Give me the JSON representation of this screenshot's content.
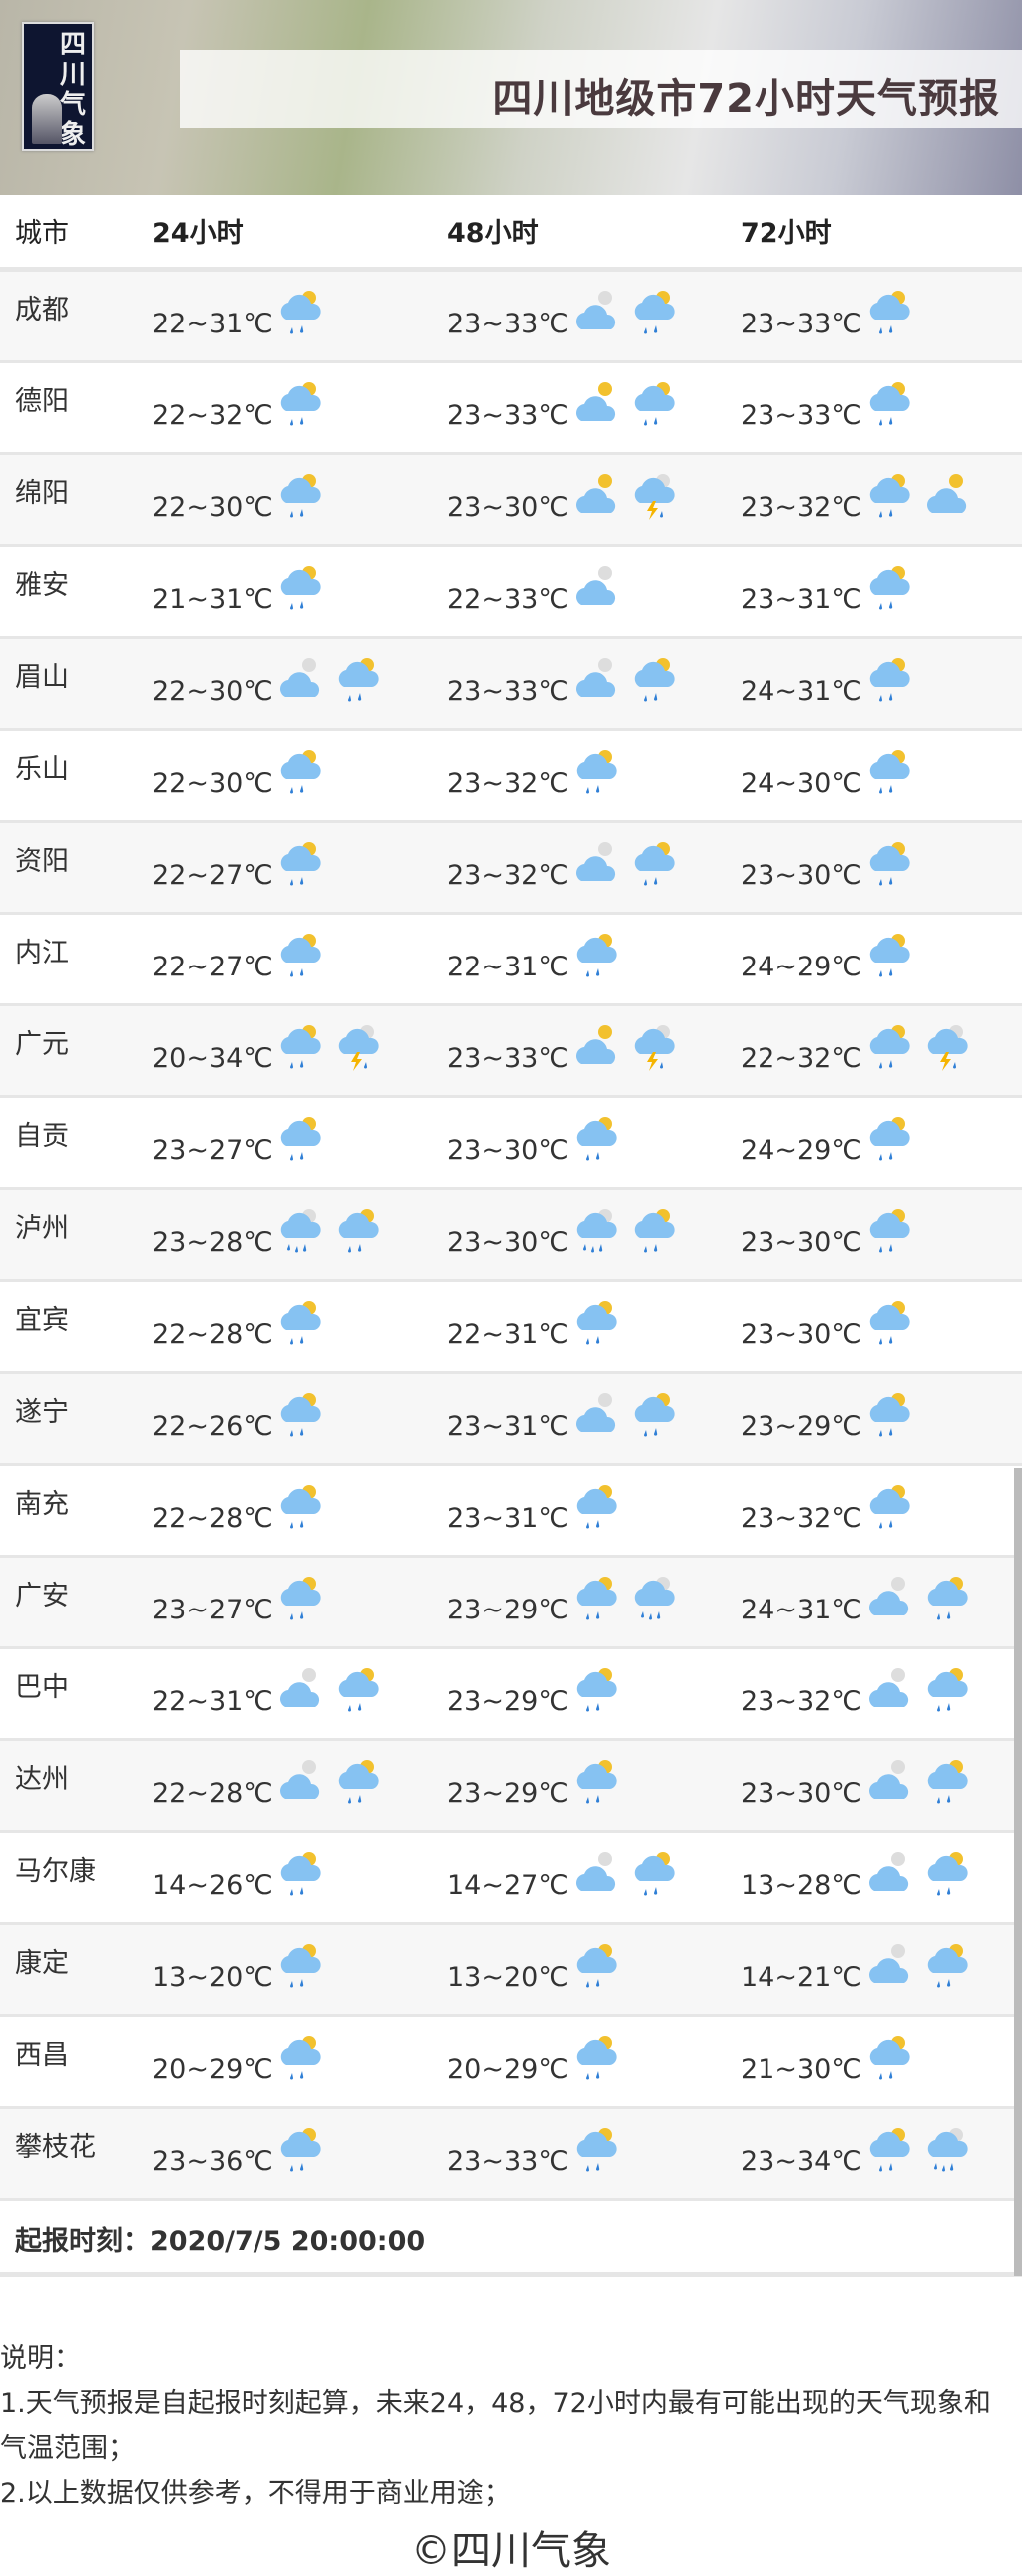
{
  "header": {
    "logo_text": "四川气象",
    "title": "四川地级市72小时天气预报"
  },
  "table": {
    "columns": [
      "城市",
      "24小时",
      "48小时",
      "72小时"
    ],
    "rows": [
      {
        "city": "成都",
        "d24": {
          "temp": "22~31℃",
          "icons": [
            "shower"
          ]
        },
        "d48": {
          "temp": "23~33℃",
          "icons": [
            "cloudy",
            "shower"
          ]
        },
        "d72": {
          "temp": "23~33℃",
          "icons": [
            "shower"
          ]
        }
      },
      {
        "city": "德阳",
        "d24": {
          "temp": "22~32℃",
          "icons": [
            "shower"
          ]
        },
        "d48": {
          "temp": "23~33℃",
          "icons": [
            "partly-cloudy",
            "shower"
          ]
        },
        "d72": {
          "temp": "23~33℃",
          "icons": [
            "shower"
          ]
        }
      },
      {
        "city": "绵阳",
        "d24": {
          "temp": "22~30℃",
          "icons": [
            "shower"
          ]
        },
        "d48": {
          "temp": "23~30℃",
          "icons": [
            "partly-cloudy",
            "thunder-shower"
          ]
        },
        "d72": {
          "temp": "23~32℃",
          "icons": [
            "shower",
            "partly-cloudy"
          ]
        }
      },
      {
        "city": "雅安",
        "d24": {
          "temp": "21~31℃",
          "icons": [
            "shower"
          ]
        },
        "d48": {
          "temp": "22~33℃",
          "icons": [
            "cloudy"
          ]
        },
        "d72": {
          "temp": "23~31℃",
          "icons": [
            "shower"
          ]
        }
      },
      {
        "city": "眉山",
        "d24": {
          "temp": "22~30℃",
          "icons": [
            "cloudy",
            "shower"
          ]
        },
        "d48": {
          "temp": "23~33℃",
          "icons": [
            "cloudy",
            "shower"
          ]
        },
        "d72": {
          "temp": "24~31℃",
          "icons": [
            "shower"
          ]
        }
      },
      {
        "city": "乐山",
        "d24": {
          "temp": "22~30℃",
          "icons": [
            "shower"
          ]
        },
        "d48": {
          "temp": "23~32℃",
          "icons": [
            "shower"
          ]
        },
        "d72": {
          "temp": "24~30℃",
          "icons": [
            "shower"
          ]
        }
      },
      {
        "city": "资阳",
        "d24": {
          "temp": "22~27℃",
          "icons": [
            "shower"
          ]
        },
        "d48": {
          "temp": "23~32℃",
          "icons": [
            "cloudy",
            "shower"
          ]
        },
        "d72": {
          "temp": "23~30℃",
          "icons": [
            "shower"
          ]
        }
      },
      {
        "city": "内江",
        "d24": {
          "temp": "22~27℃",
          "icons": [
            "shower"
          ]
        },
        "d48": {
          "temp": "22~31℃",
          "icons": [
            "shower"
          ]
        },
        "d72": {
          "temp": "24~29℃",
          "icons": [
            "shower"
          ]
        }
      },
      {
        "city": "广元",
        "d24": {
          "temp": "20~34℃",
          "icons": [
            "shower",
            "thunder-shower"
          ]
        },
        "d48": {
          "temp": "23~33℃",
          "icons": [
            "partly-cloudy",
            "thunder-shower"
          ]
        },
        "d72": {
          "temp": "22~32℃",
          "icons": [
            "shower",
            "thunder-shower"
          ]
        }
      },
      {
        "city": "自贡",
        "d24": {
          "temp": "23~27℃",
          "icons": [
            "shower"
          ]
        },
        "d48": {
          "temp": "23~30℃",
          "icons": [
            "shower"
          ]
        },
        "d72": {
          "temp": "24~29℃",
          "icons": [
            "shower"
          ]
        }
      },
      {
        "city": "泸州",
        "d24": {
          "temp": "23~28℃",
          "icons": [
            "rain",
            "shower"
          ]
        },
        "d48": {
          "temp": "23~30℃",
          "icons": [
            "rain",
            "shower"
          ]
        },
        "d72": {
          "temp": "23~30℃",
          "icons": [
            "shower"
          ]
        }
      },
      {
        "city": "宜宾",
        "d24": {
          "temp": "22~28℃",
          "icons": [
            "shower"
          ]
        },
        "d48": {
          "temp": "22~31℃",
          "icons": [
            "shower"
          ]
        },
        "d72": {
          "temp": "23~30℃",
          "icons": [
            "shower"
          ]
        }
      },
      {
        "city": "遂宁",
        "d24": {
          "temp": "22~26℃",
          "icons": [
            "shower"
          ]
        },
        "d48": {
          "temp": "23~31℃",
          "icons": [
            "cloudy",
            "shower"
          ]
        },
        "d72": {
          "temp": "23~29℃",
          "icons": [
            "shower"
          ]
        }
      },
      {
        "city": "南充",
        "d24": {
          "temp": "22~28℃",
          "icons": [
            "shower"
          ]
        },
        "d48": {
          "temp": "23~31℃",
          "icons": [
            "shower"
          ]
        },
        "d72": {
          "temp": "23~32℃",
          "icons": [
            "shower"
          ]
        }
      },
      {
        "city": "广安",
        "d24": {
          "temp": "23~27℃",
          "icons": [
            "shower"
          ]
        },
        "d48": {
          "temp": "23~29℃",
          "icons": [
            "shower",
            "rain"
          ]
        },
        "d72": {
          "temp": "24~31℃",
          "icons": [
            "cloudy",
            "shower"
          ]
        }
      },
      {
        "city": "巴中",
        "d24": {
          "temp": "22~31℃",
          "icons": [
            "cloudy",
            "shower"
          ]
        },
        "d48": {
          "temp": "23~29℃",
          "icons": [
            "shower"
          ]
        },
        "d72": {
          "temp": "23~32℃",
          "icons": [
            "cloudy",
            "shower"
          ]
        }
      },
      {
        "city": "达州",
        "d24": {
          "temp": "22~28℃",
          "icons": [
            "cloudy",
            "shower"
          ]
        },
        "d48": {
          "temp": "23~29℃",
          "icons": [
            "shower"
          ]
        },
        "d72": {
          "temp": "23~30℃",
          "icons": [
            "cloudy",
            "shower"
          ]
        }
      },
      {
        "city": "马尔康",
        "d24": {
          "temp": "14~26℃",
          "icons": [
            "shower"
          ]
        },
        "d48": {
          "temp": "14~27℃",
          "icons": [
            "cloudy",
            "shower"
          ]
        },
        "d72": {
          "temp": "13~28℃",
          "icons": [
            "cloudy",
            "shower"
          ]
        }
      },
      {
        "city": "康定",
        "d24": {
          "temp": "13~20℃",
          "icons": [
            "shower"
          ]
        },
        "d48": {
          "temp": "13~20℃",
          "icons": [
            "shower"
          ]
        },
        "d72": {
          "temp": "14~21℃",
          "icons": [
            "cloudy",
            "shower"
          ]
        }
      },
      {
        "city": "西昌",
        "d24": {
          "temp": "20~29℃",
          "icons": [
            "shower"
          ]
        },
        "d48": {
          "temp": "20~29℃",
          "icons": [
            "shower"
          ]
        },
        "d72": {
          "temp": "21~30℃",
          "icons": [
            "shower"
          ]
        }
      },
      {
        "city": "攀枝花",
        "d24": {
          "temp": "23~36℃",
          "icons": [
            "shower"
          ]
        },
        "d48": {
          "temp": "23~33℃",
          "icons": [
            "shower"
          ]
        },
        "d72": {
          "temp": "23~34℃",
          "icons": [
            "shower",
            "rain"
          ]
        }
      }
    ]
  },
  "issued": "起报时刻：2020/7/5 20:00:00",
  "notes": {
    "title": "说明：",
    "items": [
      "1.天气预报是自起报时刻起算，未来24，48，72小时内最有可能出现的天气现象和气温范围；",
      "2.以上数据仅供参考，不得用于商业用途；"
    ]
  },
  "copyright": "©四川气象",
  "colors": {
    "cloud": "#86c2f2",
    "sun": "#f2c12e",
    "drop": "#2f7fd6",
    "bolt": "#f5b400"
  }
}
